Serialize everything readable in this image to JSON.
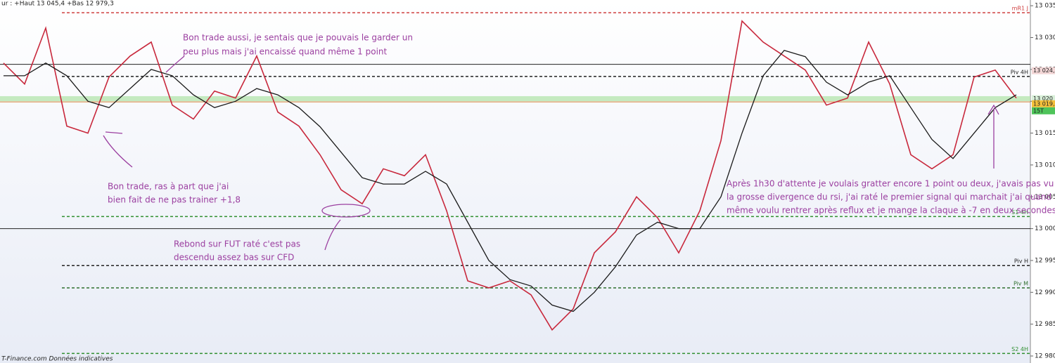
{
  "chart_data": {
    "type": "line",
    "header": "ur : +Haut 13 045,4 +Bas 12 979,3",
    "footer": "T-Finance.com Données indicatives",
    "ylim": [
      12978.9,
      13035.9
    ],
    "yticks": [
      {
        "value": 12980,
        "label": "12 980"
      },
      {
        "value": 12985,
        "label": "12 985"
      },
      {
        "value": 12990,
        "label": "12 990"
      },
      {
        "value": 12995,
        "label": "12 995"
      },
      {
        "value": 13000,
        "label": "13 000"
      },
      {
        "value": 13005,
        "label": "13 005"
      },
      {
        "value": 13010,
        "label": "13 010"
      },
      {
        "value": 13015,
        "label": "13 015"
      },
      {
        "value": 13020,
        "label": "13 020"
      },
      {
        "value": 13025,
        "label": "13 025"
      },
      {
        "value": 13030,
        "label": "13 030"
      },
      {
        "value": 13035,
        "label": "13 035"
      }
    ],
    "series": [
      {
        "color": "#c8283c",
        "values": [
          13026.0,
          13022.7,
          13031.5,
          13016.1,
          13015.0,
          13023.8,
          13027.1,
          13029.3,
          13019.4,
          13017.2,
          13021.6,
          13020.5,
          13027.1,
          13018.3,
          13016.1,
          13011.6,
          13006.1,
          13003.9,
          13009.4,
          13008.3,
          13011.6,
          13002.8,
          12991.8,
          12990.7,
          12991.8,
          12989.6,
          12984.1,
          12987.4,
          12996.2,
          12999.5,
          13005.0,
          13001.7,
          12996.2,
          13002.8,
          13013.8,
          13032.6,
          13029.3,
          13027.1,
          13024.9,
          13019.4,
          13020.5,
          13029.3,
          13022.7,
          13011.6,
          13009.4,
          13011.6,
          13023.8,
          13024.9,
          13020.5
        ]
      },
      {
        "color": "#1a1a1a",
        "values": [
          13024,
          13024,
          13026,
          13024,
          13020,
          13019,
          13022,
          13025,
          13024,
          13021,
          13019,
          13020,
          13022,
          13021,
          13019,
          13016,
          13012,
          13008,
          13007,
          13007,
          13009,
          13007,
          13001,
          12995,
          12992,
          12991,
          12988,
          12987,
          12990,
          12994,
          12999,
          13001,
          13000,
          13000,
          13005,
          13015,
          13024,
          13028,
          13027,
          13023,
          13021,
          13023,
          13024,
          13019,
          13014,
          13011,
          13015,
          13019,
          13021
        ]
      }
    ],
    "zone": {
      "from": 13020.0,
      "to": 13020.8,
      "color": "#b6e6b0"
    },
    "levels": [
      {
        "label": "mR1 J",
        "value": 13033.9,
        "color": "#d04040",
        "dashed": true
      },
      {
        "value": 13025.8,
        "color": "#222222",
        "dashed": false
      },
      {
        "label": "Piv 4H",
        "value": 13023.9,
        "color": "#222222",
        "dashed": true
      },
      {
        "value": 13019.9,
        "color": "#d9823b",
        "dashed": false
      },
      {
        "label": "S1 4H",
        "value": 13001.9,
        "color": "#2f8f2f",
        "dashed": true
      },
      {
        "value": 13000.0,
        "color": "#222222",
        "dashed": false
      },
      {
        "label": "Piv H",
        "value": 12994.2,
        "color": "#222222",
        "dashed": true
      },
      {
        "label": "Piv M",
        "value": 12990.7,
        "color": "#2f6f2f",
        "dashed": true
      },
      {
        "label": "S2 4H",
        "value": 12980.4,
        "color": "#2f8f2f",
        "dashed": true
      }
    ],
    "price_tags": [
      {
        "label": "13 024,",
        "value": 13024.8,
        "color": "#f2d6d6"
      },
      {
        "label": "13 020",
        "value": 13020.4,
        "color": "#d8efd8"
      },
      {
        "label": "13 019,",
        "value": 13019.6,
        "color": "#f4c03a"
      },
      {
        "label": "15T",
        "value": 13018.5,
        "color": "#4fc45a"
      }
    ],
    "annotations": [
      [
        "Bon trade aussi, je sentais que je pouvais le garder un",
        "peu plus mais j'ai encaissé quand même 1 point"
      ],
      [
        "Bon trade, ras à part que j'ai",
        "bien fait de ne pas trainer +1,8"
      ],
      [
        "Rebond sur FUT raté c'est pas",
        "descendu assez bas sur CFD"
      ],
      [
        "Après 1h30 d'attente je voulais gratter encore 1 point ou deux, j'avais pas vu",
        "la grosse divergence du rsi, j'ai raté le premier signal qui marchait j'ai quand",
        "même voulu rentrer après reflux et je mange la claque à -7 en deux secondes"
      ]
    ]
  }
}
